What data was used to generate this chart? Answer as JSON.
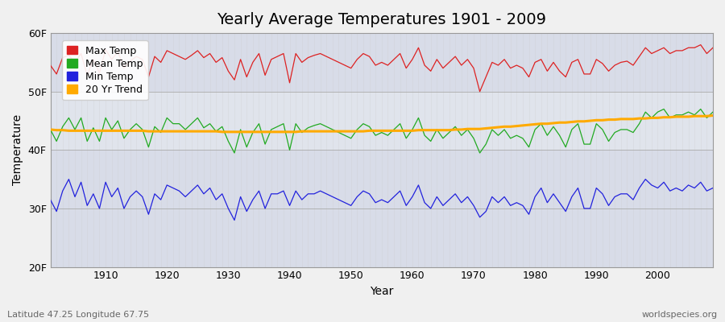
{
  "title": "Yearly Average Temperatures 1901 - 2009",
  "xlabel": "Year",
  "ylabel": "Temperature",
  "footer_left": "Latitude 47.25 Longitude 67.75",
  "footer_right": "worldspecies.org",
  "years": [
    1901,
    1902,
    1903,
    1904,
    1905,
    1906,
    1907,
    1908,
    1909,
    1910,
    1911,
    1912,
    1913,
    1914,
    1915,
    1916,
    1917,
    1918,
    1919,
    1920,
    1921,
    1922,
    1923,
    1924,
    1925,
    1926,
    1927,
    1928,
    1929,
    1930,
    1931,
    1932,
    1933,
    1934,
    1935,
    1936,
    1937,
    1938,
    1939,
    1940,
    1941,
    1942,
    1943,
    1944,
    1945,
    1946,
    1947,
    1948,
    1949,
    1950,
    1951,
    1952,
    1953,
    1954,
    1955,
    1956,
    1957,
    1958,
    1959,
    1960,
    1961,
    1962,
    1963,
    1964,
    1965,
    1966,
    1967,
    1968,
    1969,
    1970,
    1971,
    1972,
    1973,
    1974,
    1975,
    1976,
    1977,
    1978,
    1979,
    1980,
    1981,
    1982,
    1983,
    1984,
    1985,
    1986,
    1987,
    1988,
    1989,
    1990,
    1991,
    1992,
    1993,
    1994,
    1995,
    1996,
    1997,
    1998,
    1999,
    2000,
    2001,
    2002,
    2003,
    2004,
    2005,
    2006,
    2007,
    2008,
    2009
  ],
  "max_temp": [
    54.5,
    53.0,
    55.8,
    56.2,
    55.0,
    56.5,
    52.8,
    55.5,
    53.2,
    57.2,
    55.5,
    56.8,
    54.0,
    55.2,
    56.0,
    55.5,
    52.5,
    56.0,
    55.0,
    57.0,
    56.5,
    56.0,
    55.5,
    56.2,
    57.0,
    55.8,
    56.5,
    55.0,
    55.8,
    53.5,
    52.0,
    55.5,
    52.5,
    55.0,
    56.5,
    52.8,
    55.5,
    56.0,
    56.5,
    51.5,
    56.5,
    55.0,
    55.8,
    56.2,
    56.5,
    56.0,
    55.5,
    55.0,
    54.5,
    54.0,
    55.5,
    56.5,
    56.0,
    54.5,
    55.0,
    54.5,
    55.5,
    56.5,
    54.0,
    55.5,
    57.5,
    54.5,
    53.5,
    55.5,
    54.0,
    55.0,
    56.0,
    54.5,
    55.5,
    54.0,
    50.0,
    52.5,
    55.0,
    54.5,
    55.5,
    54.0,
    54.5,
    54.0,
    52.5,
    55.0,
    55.5,
    53.5,
    55.0,
    53.5,
    52.5,
    55.0,
    55.5,
    53.0,
    53.0,
    55.5,
    54.8,
    53.5,
    54.5,
    55.0,
    55.2,
    54.5,
    56.0,
    57.5,
    56.5,
    57.0,
    57.5,
    56.5,
    57.0,
    57.0,
    57.5,
    57.5,
    58.0,
    56.5,
    57.5
  ],
  "mean_temp": [
    43.5,
    41.5,
    44.0,
    45.5,
    43.5,
    45.5,
    41.5,
    43.8,
    41.5,
    45.5,
    43.5,
    45.0,
    42.0,
    43.5,
    44.5,
    43.5,
    40.5,
    44.0,
    43.0,
    45.5,
    44.5,
    44.5,
    43.5,
    44.5,
    45.5,
    43.8,
    44.5,
    43.2,
    44.0,
    41.5,
    39.5,
    43.5,
    40.5,
    43.0,
    44.5,
    41.0,
    43.5,
    44.0,
    44.5,
    40.0,
    44.5,
    43.0,
    43.8,
    44.2,
    44.5,
    44.0,
    43.5,
    43.0,
    42.5,
    42.0,
    43.5,
    44.5,
    44.0,
    42.5,
    43.0,
    42.5,
    43.5,
    44.5,
    42.0,
    43.5,
    45.5,
    42.5,
    41.5,
    43.5,
    42.0,
    43.0,
    44.0,
    42.5,
    43.5,
    42.0,
    39.5,
    41.0,
    43.5,
    42.5,
    43.5,
    42.0,
    42.5,
    42.0,
    40.5,
    43.5,
    44.5,
    42.5,
    44.0,
    42.5,
    40.5,
    43.5,
    44.5,
    41.0,
    41.0,
    44.5,
    43.5,
    41.5,
    43.0,
    43.5,
    43.5,
    43.0,
    44.5,
    46.5,
    45.5,
    46.5,
    47.0,
    45.5,
    46.0,
    46.0,
    46.5,
    46.0,
    47.0,
    45.5,
    46.5
  ],
  "min_temp": [
    31.5,
    29.5,
    33.0,
    35.0,
    32.0,
    34.5,
    30.5,
    32.5,
    30.0,
    34.5,
    32.0,
    33.5,
    30.0,
    32.0,
    33.0,
    32.0,
    29.0,
    32.5,
    31.5,
    34.0,
    33.5,
    33.0,
    32.0,
    33.0,
    34.0,
    32.5,
    33.5,
    31.5,
    32.5,
    30.0,
    28.0,
    32.0,
    29.5,
    31.5,
    33.0,
    30.0,
    32.5,
    32.5,
    33.0,
    30.5,
    33.0,
    31.5,
    32.5,
    32.5,
    33.0,
    32.5,
    32.0,
    31.5,
    31.0,
    30.5,
    32.0,
    33.0,
    32.5,
    31.0,
    31.5,
    31.0,
    32.0,
    33.0,
    30.5,
    32.0,
    34.0,
    31.0,
    30.0,
    32.0,
    30.5,
    31.5,
    32.5,
    31.0,
    32.0,
    30.5,
    28.5,
    29.5,
    32.0,
    31.0,
    32.0,
    30.5,
    31.0,
    30.5,
    29.0,
    32.0,
    33.5,
    31.0,
    32.5,
    31.0,
    29.5,
    32.0,
    33.5,
    30.0,
    30.0,
    33.5,
    32.5,
    30.5,
    32.0,
    32.5,
    32.5,
    31.5,
    33.5,
    35.0,
    34.0,
    33.5,
    34.5,
    33.0,
    33.5,
    33.0,
    34.0,
    33.5,
    34.5,
    33.0,
    33.5
  ],
  "trend": [
    43.5,
    43.4,
    43.4,
    43.3,
    43.3,
    43.3,
    43.3,
    43.3,
    43.3,
    43.3,
    43.3,
    43.3,
    43.3,
    43.3,
    43.3,
    43.3,
    43.2,
    43.2,
    43.2,
    43.2,
    43.2,
    43.2,
    43.2,
    43.2,
    43.2,
    43.2,
    43.2,
    43.2,
    43.1,
    43.1,
    43.1,
    43.1,
    43.1,
    43.1,
    43.1,
    43.1,
    43.1,
    43.1,
    43.1,
    43.1,
    43.1,
    43.2,
    43.2,
    43.2,
    43.2,
    43.2,
    43.2,
    43.2,
    43.2,
    43.2,
    43.2,
    43.2,
    43.3,
    43.3,
    43.3,
    43.3,
    43.3,
    43.3,
    43.3,
    43.3,
    43.4,
    43.4,
    43.4,
    43.4,
    43.4,
    43.4,
    43.5,
    43.5,
    43.6,
    43.6,
    43.6,
    43.7,
    43.8,
    43.9,
    44.0,
    44.0,
    44.1,
    44.2,
    44.3,
    44.4,
    44.5,
    44.5,
    44.6,
    44.7,
    44.7,
    44.8,
    44.9,
    44.9,
    45.0,
    45.1,
    45.1,
    45.2,
    45.2,
    45.3,
    45.3,
    45.3,
    45.4,
    45.4,
    45.5,
    45.5,
    45.6,
    45.6,
    45.7,
    45.7,
    45.7,
    45.8,
    45.8,
    45.8,
    45.9
  ],
  "ylim": [
    20,
    60
  ],
  "yticks": [
    20,
    30,
    40,
    50,
    60
  ],
  "ytick_labels": [
    "20F",
    "30F",
    "40F",
    "50F",
    "60F"
  ],
  "xticks": [
    1910,
    1920,
    1930,
    1940,
    1950,
    1960,
    1970,
    1980,
    1990,
    2000
  ],
  "band_colors": [
    "#dde0e8",
    "#e8e8e8",
    "#dde0e8"
  ],
  "plot_bg_color": "#e8eaf0",
  "grid_color": "#ffffff",
  "max_color": "#dd2222",
  "mean_color": "#22aa22",
  "min_color": "#2222dd",
  "trend_color": "#ffaa00",
  "legend_labels": [
    "Max Temp",
    "Mean Temp",
    "Min Temp",
    "20 Yr Trend"
  ],
  "title_fontsize": 14,
  "axis_label_fontsize": 10,
  "tick_fontsize": 9,
  "legend_fontsize": 9
}
